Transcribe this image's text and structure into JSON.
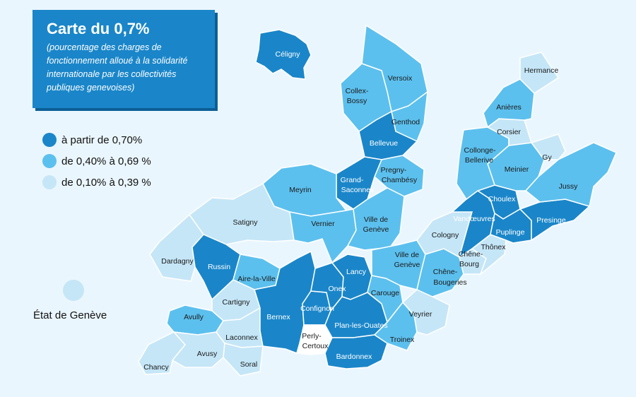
{
  "title": "Carte du 0,7%",
  "subtitle": "(pourcentage des charges de fonctionnement alloué à la solidarité internationale par les collectivités publiques genevoises)",
  "colors": {
    "high": "#1a86c9",
    "mid": "#5cc0ee",
    "low": "#c5e6f7",
    "none": "#ffffff",
    "water": "#eaf6fd"
  },
  "legend": [
    {
      "label": "à partir de 0,70%",
      "color": "#1a86c9"
    },
    {
      "label": "de 0,40% à 0,69 %",
      "color": "#5cc0ee"
    },
    {
      "label": "de 0,10% à 0,39 %",
      "color": "#c5e6f7"
    }
  ],
  "state_label": "État de Genève",
  "municipalities": [
    {
      "name": "Céligny",
      "level": "high"
    },
    {
      "name": "Versoix",
      "level": "mid"
    },
    {
      "name": "Collex-Bossy",
      "level": "mid"
    },
    {
      "name": "Genthod",
      "level": "mid"
    },
    {
      "name": "Bellevue",
      "level": "high"
    },
    {
      "name": "Pregny-Chambésy",
      "level": "mid"
    },
    {
      "name": "Grand-Saconnex",
      "level": "high"
    },
    {
      "name": "Meyrin",
      "level": "mid"
    },
    {
      "name": "Satigny",
      "level": "low"
    },
    {
      "name": "Vernier",
      "level": "mid"
    },
    {
      "name": "Ville de Genève",
      "level": "mid"
    },
    {
      "name": "Dardagny",
      "level": "low"
    },
    {
      "name": "Russin",
      "level": "high"
    },
    {
      "name": "Aire-la-Ville",
      "level": "mid"
    },
    {
      "name": "Cartigny",
      "level": "low"
    },
    {
      "name": "Avully",
      "level": "mid"
    },
    {
      "name": "Chancy",
      "level": "low"
    },
    {
      "name": "Avusy",
      "level": "low"
    },
    {
      "name": "Laconnex",
      "level": "low"
    },
    {
      "name": "Soral",
      "level": "low"
    },
    {
      "name": "Bernex",
      "level": "high"
    },
    {
      "name": "Confignon",
      "level": "high"
    },
    {
      "name": "Perly-Certoux",
      "level": "none"
    },
    {
      "name": "Onex",
      "level": "high"
    },
    {
      "name": "Lancy",
      "level": "high"
    },
    {
      "name": "Plan-les-Ouates",
      "level": "high"
    },
    {
      "name": "Bardonnex",
      "level": "high"
    },
    {
      "name": "Carouge",
      "level": "mid"
    },
    {
      "name": "Troinex",
      "level": "mid"
    },
    {
      "name": "Veyrier",
      "level": "low"
    },
    {
      "name": "Chêne-Bougeries",
      "level": "mid"
    },
    {
      "name": "Chêne-Bourg",
      "level": "low"
    },
    {
      "name": "Thônex",
      "level": "low"
    },
    {
      "name": "Cologny",
      "level": "low"
    },
    {
      "name": "Vandœuvres",
      "level": "high"
    },
    {
      "name": "Choulex",
      "level": "high"
    },
    {
      "name": "Puplinge",
      "level": "high"
    },
    {
      "name": "Presinge",
      "level": "high"
    },
    {
      "name": "Meinier",
      "level": "mid"
    },
    {
      "name": "Jussy",
      "level": "mid"
    },
    {
      "name": "Gy",
      "level": "low"
    },
    {
      "name": "Collonge-Bellerive",
      "level": "mid"
    },
    {
      "name": "Corsier",
      "level": "low"
    },
    {
      "name": "Anières",
      "level": "mid"
    },
    {
      "name": "Hermance",
      "level": "low"
    }
  ]
}
